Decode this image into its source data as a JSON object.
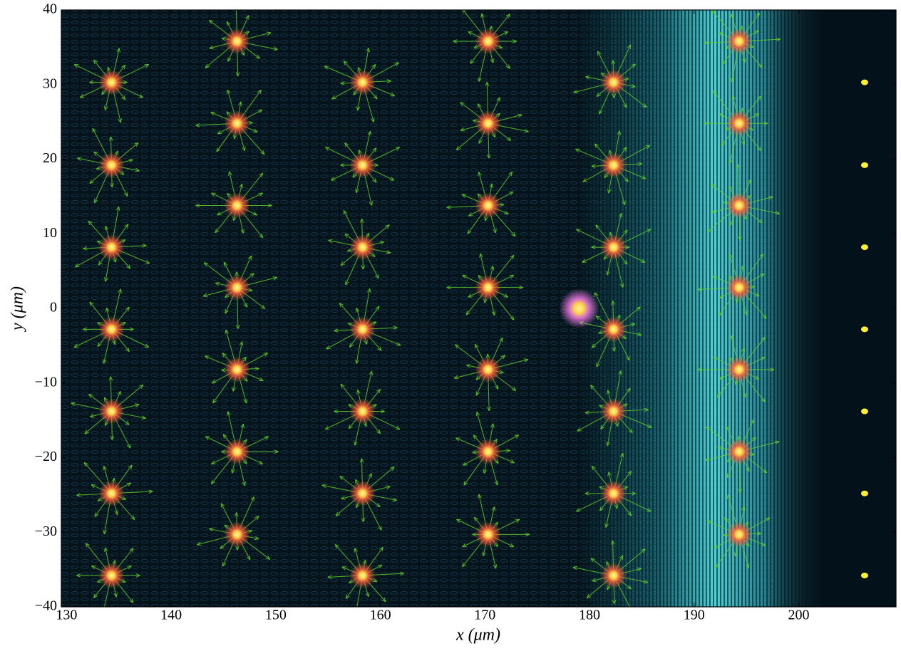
{
  "chart_data": {
    "type": "scatter",
    "xlabel": "x (μm)",
    "ylabel": "y (μm)",
    "xlim": [
      129.5,
      209.3
    ],
    "ylim": [
      -40,
      40
    ],
    "xticks": [
      130,
      140,
      150,
      160,
      170,
      180,
      190,
      200
    ],
    "yticks": [
      {
        "value": -40,
        "label": "−40"
      },
      {
        "value": -30,
        "label": "−30"
      },
      {
        "value": -20,
        "label": "−20"
      },
      {
        "value": -10,
        "label": "−10"
      },
      0,
      10,
      20,
      30,
      40
    ],
    "series": [
      {
        "color": "#ff5a3c",
        "glow": true,
        "x": [
          134.3,
          134.3,
          134.3,
          134.3,
          134.3,
          134.3,
          134.3,
          146.3,
          146.3,
          146.3,
          146.3,
          146.3,
          146.3,
          146.3,
          158.3,
          158.3,
          158.3,
          158.3,
          158.3,
          158.3,
          158.3,
          170.3,
          170.3,
          170.3,
          170.3,
          170.3,
          170.3,
          170.3,
          182.3,
          182.3,
          182.3,
          182.3,
          182.3,
          182.3,
          182.3,
          194.3,
          194.3,
          194.3,
          194.3,
          194.3,
          194.3,
          194.3
        ],
        "y": [
          30.3,
          19.2,
          8.2,
          -2.8,
          -13.8,
          -24.8,
          -35.8,
          35.8,
          24.8,
          13.8,
          2.8,
          -8.2,
          -19.2,
          -30.3,
          30.3,
          19.2,
          8.2,
          -2.8,
          -13.8,
          -24.8,
          -35.8,
          35.8,
          24.8,
          13.8,
          2.8,
          -8.2,
          -19.2,
          -30.3,
          30.3,
          19.2,
          8.2,
          -2.8,
          -13.8,
          -24.8,
          -35.8,
          35.8,
          24.8,
          13.8,
          2.8,
          -8.2,
          -19.2,
          -30.3
        ]
      },
      {
        "color": "#ffee33",
        "glow": false,
        "x": [
          206.3,
          206.3,
          206.3,
          206.3,
          206.3,
          206.3,
          206.3
        ],
        "y": [
          30.3,
          19.2,
          8.2,
          -2.8,
          -13.8,
          -24.8,
          -35.8
        ]
      },
      {
        "color": "#ff80f0",
        "glow": true,
        "x": [
          179.0
        ],
        "y": [
          0.0
        ]
      }
    ]
  }
}
